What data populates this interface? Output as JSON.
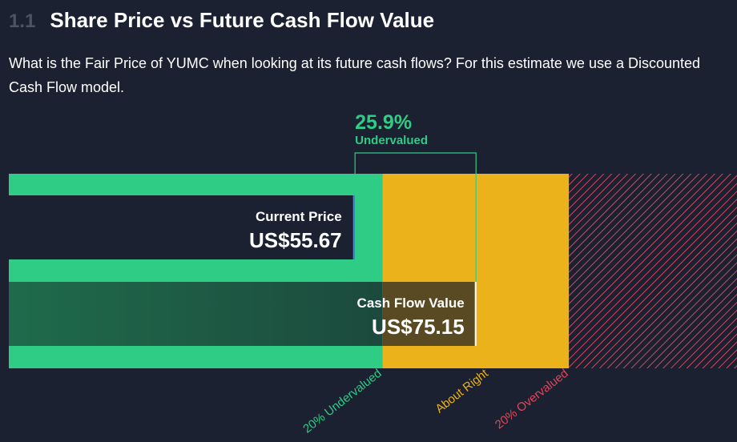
{
  "header": {
    "section_number": "1.1",
    "title": "Share Price vs Future Cash Flow Value"
  },
  "description": "What is the Fair Price of YUMC when looking at its future cash flows? For this estimate we use a Discounted Cash Flow model.",
  "chart_data": {
    "type": "bar",
    "title": "",
    "xlabel": "",
    "ylabel": "",
    "currency": "US$",
    "current_price": {
      "label": "Current Price",
      "value": 55.67,
      "display": "US$55.67"
    },
    "cash_flow_value": {
      "label": "Cash Flow Value",
      "value": 75.15,
      "display": "US$75.15"
    },
    "valuation": {
      "percent": "25.9%",
      "status": "Undervalued"
    },
    "zones": [
      {
        "label": "20% Undervalued",
        "color": "#2ecc85"
      },
      {
        "label": "About Right",
        "color": "#ecb21c"
      },
      {
        "label": "20% Overvalued",
        "color": "#e0455a"
      }
    ],
    "zone_bounds": [
      60.12,
      90.18
    ],
    "xlim": [
      0,
      117.23
    ]
  },
  "colors": {
    "background": "#1b2130",
    "undervalued": "#2ecc85",
    "about_right": "#ecb21c",
    "overvalued": "#e0455a",
    "panel": "#1b2130"
  }
}
